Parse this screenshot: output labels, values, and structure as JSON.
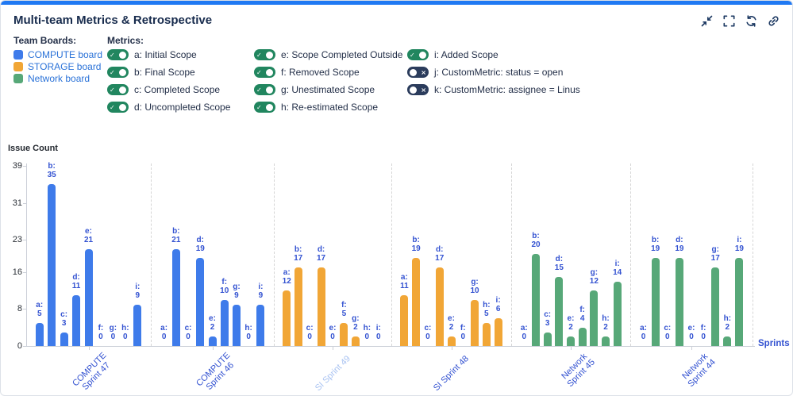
{
  "header": {
    "title": "Multi-team Metrics & Retrospective",
    "icons": [
      {
        "name": "collapse-icon"
      },
      {
        "name": "fullscreen-icon"
      },
      {
        "name": "refresh-icon"
      },
      {
        "name": "link-icon"
      }
    ]
  },
  "team_boards": {
    "label": "Team Boards:",
    "items": [
      {
        "id": "compute-board",
        "label": "COMPUTE board",
        "color": "#3e7bea"
      },
      {
        "id": "storage-board",
        "label": "STORAGE board",
        "color": "#f1a636"
      },
      {
        "id": "network-board",
        "label": "Network board",
        "color": "#57a878"
      }
    ]
  },
  "metrics": {
    "label": "Metrics:",
    "columns": [
      [
        {
          "key": "a",
          "label": "a: Initial Scope",
          "enabled": true
        },
        {
          "key": "b",
          "label": "b: Final Scope",
          "enabled": true
        },
        {
          "key": "c",
          "label": "c: Completed Scope",
          "enabled": true
        },
        {
          "key": "d",
          "label": "d: Uncompleted Scope",
          "enabled": true
        }
      ],
      [
        {
          "key": "e",
          "label": "e: Scope Completed Outside",
          "enabled": true
        },
        {
          "key": "f",
          "label": "f: Removed Scope",
          "enabled": true
        },
        {
          "key": "g",
          "label": "g: Unestimated Scope",
          "enabled": true
        },
        {
          "key": "h",
          "label": "h: Re-estimated Scope",
          "enabled": true
        }
      ],
      [
        {
          "key": "i",
          "label": "i: Added Scope",
          "enabled": true
        },
        {
          "key": "j",
          "label": "j: CustomMetric: status = open",
          "enabled": false
        },
        {
          "key": "k",
          "label": "k: CustomMetric: assignee = Linus",
          "enabled": false
        }
      ]
    ]
  },
  "colors": {
    "top_strip": "#2079f3",
    "toggle_on": "#21865f",
    "toggle_off": "#2b3c5c",
    "bar_blue": "#3e7bea",
    "bar_orange": "#f1a636",
    "bar_green": "#57a878",
    "bar_label": "#3352d1",
    "sprint_label_active": "#3352d1",
    "sprint_label_inactive": "#a9c3f2",
    "legend_text": "#2a72d8",
    "title_navy": "#172b4d"
  },
  "chart_data": {
    "type": "bar",
    "ylabel": "Issue Count",
    "xlabel": "Sprints",
    "ylim": [
      0,
      39
    ],
    "yticks": [
      0,
      8,
      16,
      23,
      31,
      39
    ],
    "grid": false,
    "legend_position": "top-left",
    "metric_keys": [
      "a",
      "b",
      "c",
      "d",
      "e",
      "f",
      "g",
      "h",
      "i"
    ],
    "groups": [
      {
        "sprint": "COMPUTE Sprint 47",
        "board": "COMPUTE board",
        "color": "#3e7bea",
        "label_lines": [
          "COMPUTE",
          "Sprint 47"
        ],
        "label_color": "#3352d1",
        "values": {
          "a": 5,
          "b": 35,
          "c": 3,
          "d": 11,
          "e": 21,
          "f": 0,
          "g": 0,
          "h": 0,
          "i": 9
        }
      },
      {
        "sprint": "COMPUTE Sprint 46",
        "board": "COMPUTE board",
        "color": "#3e7bea",
        "label_lines": [
          "COMPUTE",
          "Sprint 46"
        ],
        "label_color": "#3352d1",
        "values": {
          "a": 0,
          "b": 21,
          "c": 0,
          "d": 19,
          "e": 2,
          "f": 10,
          "g": 9,
          "h": 0,
          "i": 9
        }
      },
      {
        "sprint": "SI Sprint 49",
        "board": "STORAGE board",
        "color": "#f1a636",
        "label_lines": [
          "SI Sprint 49"
        ],
        "label_color": "#a9c3f2",
        "values": {
          "a": 12,
          "b": 17,
          "c": 0,
          "d": 17,
          "e": 0,
          "f": 5,
          "g": 2,
          "h": 0,
          "i": 0
        }
      },
      {
        "sprint": "SI Sprint 48",
        "board": "STORAGE board",
        "color": "#f1a636",
        "label_lines": [
          "SI Sprint 48"
        ],
        "label_color": "#3352d1",
        "values": {
          "a": 11,
          "b": 19,
          "c": 0,
          "d": 17,
          "e": 2,
          "f": 0,
          "g": 10,
          "h": 5,
          "i": 6
        }
      },
      {
        "sprint": "Network Sprint 45",
        "board": "Network board",
        "color": "#57a878",
        "label_lines": [
          "Network",
          "Sprint 45"
        ],
        "label_color": "#3352d1",
        "values": {
          "a": 0,
          "b": 20,
          "c": 3,
          "d": 15,
          "e": 2,
          "f": 4,
          "g": 12,
          "h": 2,
          "i": 14
        }
      },
      {
        "sprint": "Network Sprint 44",
        "board": "Network board",
        "color": "#57a878",
        "label_lines": [
          "Network",
          "Sprint 44"
        ],
        "label_color": "#3352d1",
        "values": {
          "a": 0,
          "b": 19,
          "c": 0,
          "d": 19,
          "e": 0,
          "f": 0,
          "g": 17,
          "h": 2,
          "i": 19
        }
      }
    ]
  }
}
